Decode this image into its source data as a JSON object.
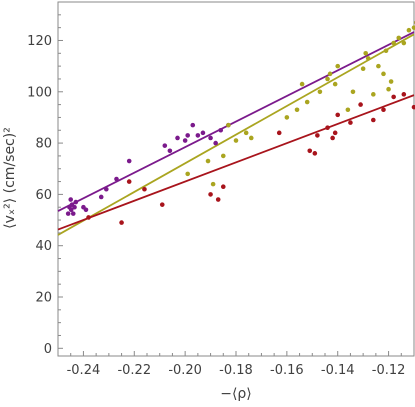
{
  "chart_data": {
    "type": "scatter",
    "xlabel": "−⟨ρ⟩",
    "ylabel": "⟨vₓ²⟩ (cm/sec)²",
    "xlim": [
      -0.25,
      -0.11
    ],
    "ylim": [
      -3,
      135
    ],
    "x_ticks": [
      -0.24,
      -0.22,
      -0.2,
      -0.18,
      -0.16,
      -0.14,
      -0.12
    ],
    "x_tick_labels": [
      "-0.24",
      "-0.22",
      "-0.20",
      "-0.18",
      "-0.16",
      "-0.14",
      "-0.12"
    ],
    "y_ticks": [
      0,
      20,
      40,
      60,
      80,
      100,
      120
    ],
    "y_tick_labels": [
      "0",
      "20",
      "40",
      "60",
      "80",
      "100",
      "120"
    ],
    "grid": false,
    "frame": true,
    "series": [
      {
        "color": "#7b1a8c",
        "points": [
          [
            -0.246,
            52.5
          ],
          [
            -0.2455,
            55
          ],
          [
            -0.245,
            58
          ],
          [
            -0.2448,
            54
          ],
          [
            -0.2445,
            56
          ],
          [
            -0.244,
            52.5
          ],
          [
            -0.2435,
            55
          ],
          [
            -0.243,
            57
          ],
          [
            -0.24,
            55
          ],
          [
            -0.239,
            54
          ],
          [
            -0.233,
            59
          ],
          [
            -0.231,
            62
          ],
          [
            -0.227,
            66
          ],
          [
            -0.222,
            73
          ],
          [
            -0.208,
            79
          ],
          [
            -0.206,
            77
          ],
          [
            -0.203,
            82
          ],
          [
            -0.2,
            81
          ],
          [
            -0.199,
            83
          ],
          [
            -0.197,
            87
          ],
          [
            -0.195,
            83
          ],
          [
            -0.193,
            84
          ],
          [
            -0.19,
            82
          ],
          [
            -0.188,
            80
          ],
          [
            -0.186,
            85
          ],
          [
            -0.183,
            87
          ]
        ],
        "fit": [
          [
            -0.25,
            53.5
          ],
          [
            -0.11,
            123.3
          ]
        ]
      },
      {
        "color": "#aaa520",
        "points": [
          [
            -0.199,
            68
          ],
          [
            -0.191,
            73
          ],
          [
            -0.189,
            64
          ],
          [
            -0.185,
            75
          ],
          [
            -0.183,
            87
          ],
          [
            -0.18,
            81
          ],
          [
            -0.176,
            84
          ],
          [
            -0.174,
            82
          ],
          [
            -0.16,
            90
          ],
          [
            -0.156,
            93
          ],
          [
            -0.154,
            103
          ],
          [
            -0.152,
            96
          ],
          [
            -0.147,
            100
          ],
          [
            -0.144,
            105
          ],
          [
            -0.143,
            107
          ],
          [
            -0.141,
            103
          ],
          [
            -0.14,
            110
          ],
          [
            -0.136,
            93
          ],
          [
            -0.134,
            100
          ],
          [
            -0.13,
            109
          ],
          [
            -0.129,
            115
          ],
          [
            -0.128,
            113
          ],
          [
            -0.126,
            99
          ],
          [
            -0.124,
            110
          ],
          [
            -0.122,
            107
          ],
          [
            -0.121,
            116
          ],
          [
            -0.12,
            101
          ],
          [
            -0.119,
            104
          ],
          [
            -0.118,
            119
          ],
          [
            -0.116,
            121
          ],
          [
            -0.114,
            119
          ],
          [
            -0.112,
            124
          ],
          [
            -0.11,
            125
          ],
          [
            -0.109,
            127
          ]
        ],
        "fit": [
          [
            -0.25,
            44.2
          ],
          [
            -0.11,
            122.4
          ]
        ]
      },
      {
        "color": "#a8141c",
        "points": [
          [
            -0.238,
            51
          ],
          [
            -0.225,
            49
          ],
          [
            -0.222,
            65
          ],
          [
            -0.216,
            62
          ],
          [
            -0.209,
            56
          ],
          [
            -0.19,
            60
          ],
          [
            -0.187,
            58
          ],
          [
            -0.185,
            63
          ],
          [
            -0.163,
            84
          ],
          [
            -0.151,
            77
          ],
          [
            -0.149,
            76
          ],
          [
            -0.148,
            83
          ],
          [
            -0.144,
            86
          ],
          [
            -0.142,
            82
          ],
          [
            -0.141,
            84
          ],
          [
            -0.14,
            91
          ],
          [
            -0.135,
            88
          ],
          [
            -0.131,
            95
          ],
          [
            -0.126,
            89
          ],
          [
            -0.122,
            93
          ],
          [
            -0.118,
            98
          ],
          [
            -0.114,
            99
          ],
          [
            -0.11,
            94
          ]
        ],
        "fit": [
          [
            -0.25,
            46.3
          ],
          [
            -0.11,
            98.7
          ]
        ]
      }
    ]
  }
}
